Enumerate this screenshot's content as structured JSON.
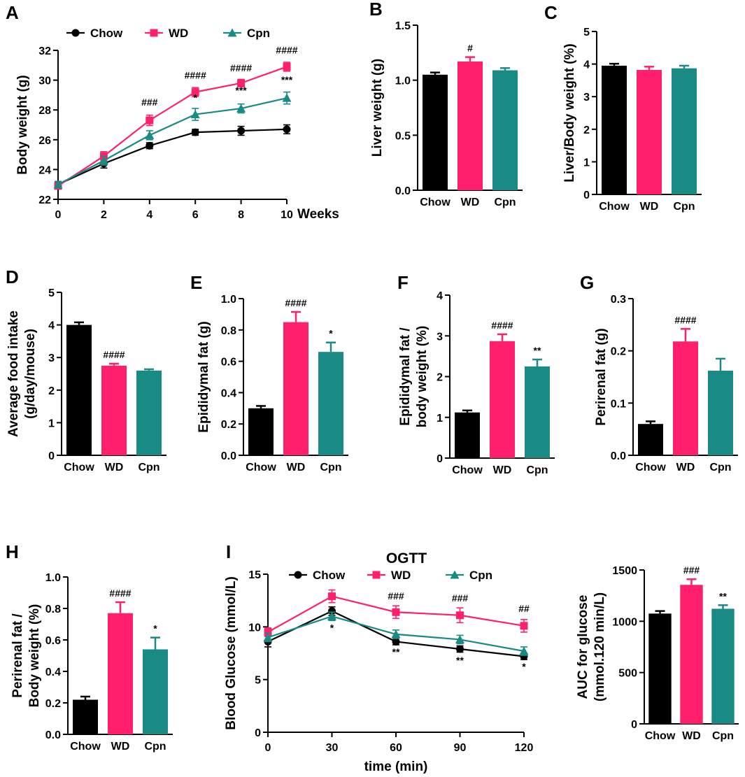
{
  "colors": {
    "chow": "#000000",
    "wd": "#ff1f6d",
    "cpn": "#1a8a84"
  },
  "chart_data": [
    {
      "id": "A",
      "type": "line",
      "panel_label": "A",
      "ylabel": "Body weight (g)",
      "xlabel": "Weeks",
      "x": [
        0,
        2,
        4,
        6,
        8,
        10
      ],
      "xlim": [
        0,
        10
      ],
      "ylim": [
        22,
        32
      ],
      "yticks": [
        "22",
        "24",
        "26",
        "28",
        "30",
        "32"
      ],
      "xticks": [
        "0",
        "2",
        "4",
        "6",
        "8",
        "10"
      ],
      "series": [
        {
          "name": "Chow",
          "color": "#000000",
          "marker": "circle",
          "values": [
            23.0,
            24.4,
            25.6,
            26.5,
            26.6,
            26.7
          ],
          "err": [
            0.2,
            0.3,
            0.2,
            0.2,
            0.3,
            0.3
          ]
        },
        {
          "name": "WD",
          "color": "#ff1f6d",
          "marker": "square",
          "values": [
            22.9,
            24.9,
            27.3,
            29.2,
            29.8,
            30.9
          ],
          "err": [
            0.2,
            0.3,
            0.35,
            0.3,
            0.25,
            0.3
          ]
        },
        {
          "name": "Cpn",
          "color": "#1a8a84",
          "marker": "triangle",
          "values": [
            23.0,
            24.6,
            26.3,
            27.7,
            28.1,
            28.8
          ],
          "err": [
            0.2,
            0.3,
            0.3,
            0.4,
            0.3,
            0.4
          ]
        }
      ],
      "annotations": [
        {
          "text": "###",
          "x": 4,
          "y": 28.3
        },
        {
          "text": "####",
          "x": 6,
          "y": 30.1
        },
        {
          "text": "*",
          "x": 6,
          "y": 28.6
        },
        {
          "text": "####",
          "x": 8,
          "y": 30.6
        },
        {
          "text": "***",
          "x": 8,
          "y": 29.1
        },
        {
          "text": "####",
          "x": 10,
          "y": 31.8
        },
        {
          "text": "***",
          "x": 10,
          "y": 29.8
        }
      ],
      "legend": "top"
    },
    {
      "id": "B",
      "type": "bar",
      "panel_label": "B",
      "ylabel": "Liver weight (g)",
      "ylim": [
        0,
        1.5
      ],
      "yticks": [
        "0.0",
        "0.5",
        "1.0",
        "1.5"
      ],
      "categories": [
        "Chow",
        "WD",
        "Cpn"
      ],
      "values": [
        1.05,
        1.17,
        1.09
      ],
      "err": [
        0.02,
        0.04,
        0.02
      ],
      "annotations": [
        "",
        "#",
        ""
      ]
    },
    {
      "id": "C",
      "type": "bar",
      "panel_label": "C",
      "ylabel": "Liver/Body weight (%)",
      "ylim": [
        0,
        5
      ],
      "yticks": [
        "0",
        "1",
        "2",
        "3",
        "4",
        "5"
      ],
      "categories": [
        "Chow",
        "WD",
        "Cpn"
      ],
      "values": [
        3.95,
        3.82,
        3.87
      ],
      "err": [
        0.06,
        0.1,
        0.08
      ],
      "annotations": [
        "",
        "",
        ""
      ]
    },
    {
      "id": "D",
      "type": "bar",
      "panel_label": "D",
      "ylabel": [
        "Average food intake",
        "(g/day/mouse)"
      ],
      "ylim": [
        0,
        5
      ],
      "yticks": [
        "0",
        "1",
        "2",
        "3",
        "4",
        "5"
      ],
      "categories": [
        "Chow",
        "WD",
        "Cpn"
      ],
      "values": [
        4.0,
        2.75,
        2.6
      ],
      "err": [
        0.08,
        0.06,
        0.04
      ],
      "annotations": [
        "",
        "####",
        ""
      ]
    },
    {
      "id": "E",
      "type": "bar",
      "panel_label": "E",
      "ylabel": "Epididymal fat (g)",
      "ylim": [
        0,
        1.0
      ],
      "yticks": [
        "0.0",
        "0.2",
        "0.4",
        "0.6",
        "0.8",
        "1.0"
      ],
      "categories": [
        "Chow",
        "WD",
        "Cpn"
      ],
      "values": [
        0.3,
        0.85,
        0.66
      ],
      "err": [
        0.015,
        0.065,
        0.06
      ],
      "annotations": [
        "",
        "####",
        "*"
      ]
    },
    {
      "id": "F",
      "type": "bar",
      "panel_label": "F",
      "ylabel": [
        "Epididymal fat /",
        "body weight (%)"
      ],
      "ylim": [
        0,
        4
      ],
      "yticks": [
        "0",
        "1",
        "2",
        "3",
        "4"
      ],
      "categories": [
        "Chow",
        "WD",
        "Cpn"
      ],
      "values": [
        1.12,
        2.87,
        2.25
      ],
      "err": [
        0.05,
        0.17,
        0.17
      ],
      "annotations": [
        "",
        "####",
        "**"
      ]
    },
    {
      "id": "G",
      "type": "bar",
      "panel_label": "G",
      "ylabel": "Perirenal fat (g)",
      "ylim": [
        0,
        0.3
      ],
      "yticks": [
        "0.0",
        "0.1",
        "0.2",
        "0.3"
      ],
      "categories": [
        "Chow",
        "WD",
        "Cpn"
      ],
      "values": [
        0.06,
        0.218,
        0.162
      ],
      "err": [
        0.005,
        0.024,
        0.023
      ],
      "annotations": [
        "",
        "####",
        ""
      ]
    },
    {
      "id": "H",
      "type": "bar",
      "panel_label": "H",
      "ylabel": [
        "Perirenal fat /",
        "Body weight (%)"
      ],
      "ylim": [
        0,
        1.0
      ],
      "yticks": [
        "0.0",
        "0.2",
        "0.4",
        "0.6",
        "0.8",
        "1.0"
      ],
      "categories": [
        "Chow",
        "WD",
        "Cpn"
      ],
      "values": [
        0.22,
        0.77,
        0.54
      ],
      "err": [
        0.02,
        0.07,
        0.075
      ],
      "annotations": [
        "",
        "####",
        "*"
      ]
    },
    {
      "id": "I",
      "type": "line",
      "panel_label": "I",
      "title": "OGTT",
      "ylabel": "Blood Glucose (mmol/L)",
      "xlabel": "time (min)",
      "x": [
        0,
        30,
        60,
        90,
        120
      ],
      "xlim": [
        0,
        120
      ],
      "ylim": [
        0,
        15
      ],
      "yticks": [
        "0",
        "5",
        "10",
        "15"
      ],
      "xticks": [
        "0",
        "30",
        "60",
        "90",
        "120"
      ],
      "series": [
        {
          "name": "Chow",
          "color": "#000000",
          "marker": "circle",
          "values": [
            8.6,
            11.5,
            8.6,
            7.9,
            7.2
          ],
          "err": [
            0.5,
            0.4,
            0.3,
            0.3,
            0.3
          ]
        },
        {
          "name": "WD",
          "color": "#ff1f6d",
          "marker": "square",
          "values": [
            9.5,
            12.9,
            11.4,
            11.1,
            10.1
          ],
          "err": [
            0.4,
            0.6,
            0.6,
            0.7,
            0.6
          ]
        },
        {
          "name": "Cpn",
          "color": "#1a8a84",
          "marker": "triangle",
          "values": [
            9.0,
            11.0,
            9.3,
            8.8,
            7.7
          ],
          "err": [
            0.4,
            0.4,
            0.4,
            0.4,
            0.4
          ]
        }
      ],
      "annotations": [
        {
          "text": "*",
          "x": 30,
          "y": 9.6
        },
        {
          "text": "###",
          "x": 60,
          "y": 12.6
        },
        {
          "text": "**",
          "x": 60,
          "y": 7.3
        },
        {
          "text": "###",
          "x": 90,
          "y": 12.4
        },
        {
          "text": "**",
          "x": 90,
          "y": 6.5
        },
        {
          "text": "##",
          "x": 120,
          "y": 11.4
        },
        {
          "text": "*",
          "x": 120,
          "y": 5.9
        }
      ],
      "legend": "top"
    },
    {
      "id": "I2",
      "type": "bar",
      "panel_label": "",
      "ylabel": [
        "AUC for glucose",
        "(mmol.120 min/L)"
      ],
      "ylim": [
        0,
        1500
      ],
      "yticks": [
        "0",
        "500",
        "1000",
        "1500"
      ],
      "categories": [
        "Chow",
        "WD",
        "Cpn"
      ],
      "values": [
        1075,
        1355,
        1122
      ],
      "err": [
        25,
        55,
        35
      ],
      "annotations": [
        "",
        "###",
        "**"
      ]
    }
  ]
}
